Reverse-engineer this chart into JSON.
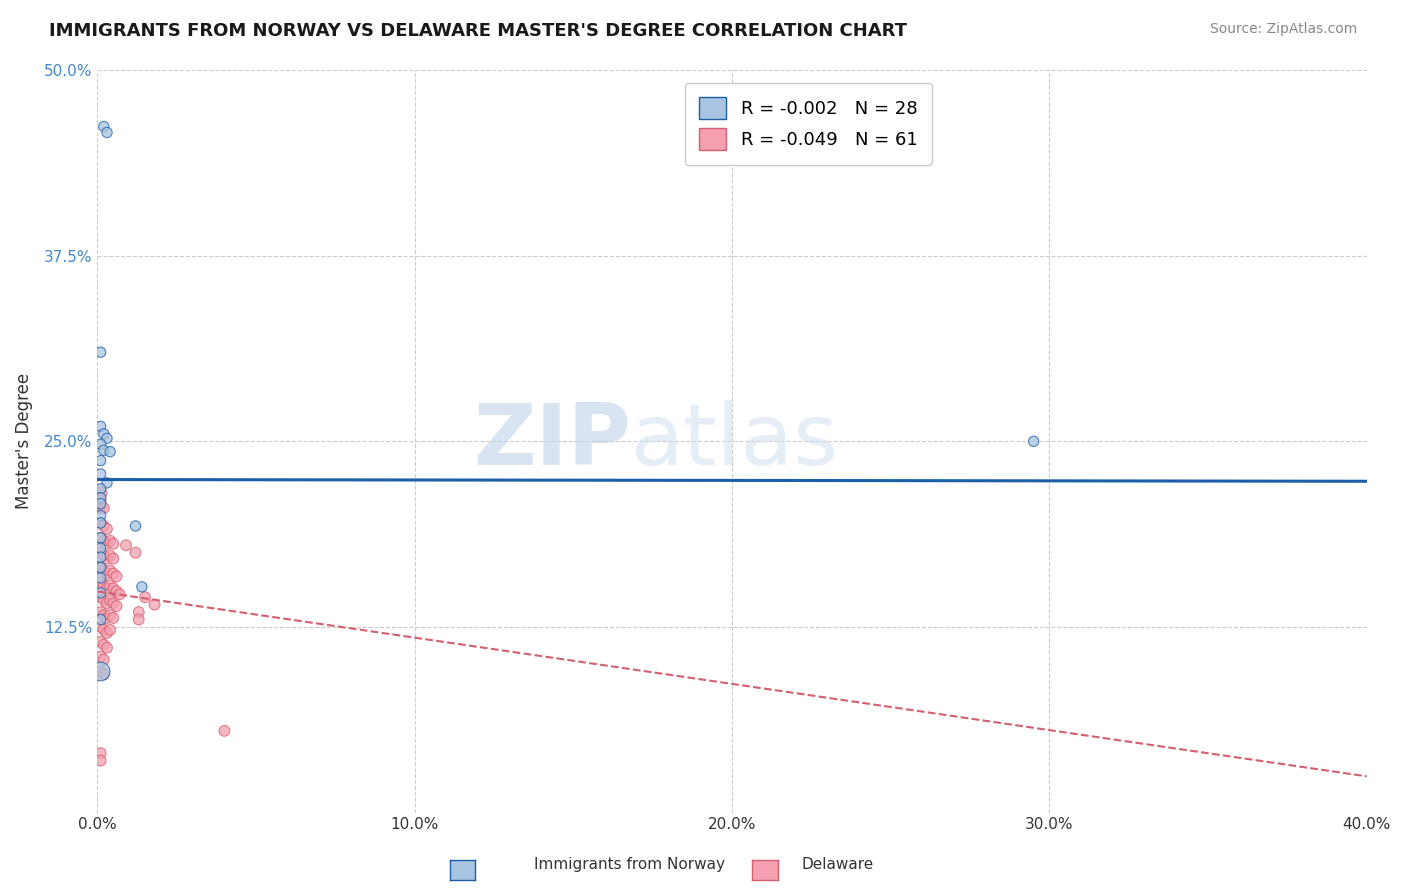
{
  "title": "IMMIGRANTS FROM NORWAY VS DELAWARE MASTER'S DEGREE CORRELATION CHART",
  "source_text": "Source: ZipAtlas.com",
  "ylabel": "Master's Degree",
  "legend_blue_label": "Immigrants from Norway",
  "legend_pink_label": "Delaware",
  "watermark_zip": "ZIP",
  "watermark_atlas": "atlas",
  "xlim": [
    0.0,
    0.4
  ],
  "ylim": [
    0.0,
    0.5
  ],
  "xticks": [
    0.0,
    0.1,
    0.2,
    0.3,
    0.4
  ],
  "xtick_labels": [
    "0.0%",
    "10.0%",
    "20.0%",
    "30.0%",
    "40.0%"
  ],
  "yticks": [
    0.0,
    0.125,
    0.25,
    0.375,
    0.5
  ],
  "ytick_labels": [
    "",
    "12.5%",
    "25.0%",
    "37.5%",
    "50.0%"
  ],
  "blue_R": -0.002,
  "blue_N": 28,
  "pink_R": -0.049,
  "pink_N": 61,
  "blue_color": "#a8c4e0",
  "pink_color": "#f4a0b0",
  "blue_line_color": "#1a5fa8",
  "pink_line_color": "#d45f70",
  "background_color": "#ffffff",
  "grid_color": "#cccccc",
  "blue_dots": [
    [
      0.002,
      0.462
    ],
    [
      0.003,
      0.458
    ],
    [
      0.001,
      0.31
    ],
    [
      0.001,
      0.26
    ],
    [
      0.002,
      0.255
    ],
    [
      0.003,
      0.252
    ],
    [
      0.001,
      0.248
    ],
    [
      0.002,
      0.244
    ],
    [
      0.004,
      0.243
    ],
    [
      0.001,
      0.237
    ],
    [
      0.001,
      0.228
    ],
    [
      0.003,
      0.222
    ],
    [
      0.001,
      0.218
    ],
    [
      0.001,
      0.212
    ],
    [
      0.001,
      0.208
    ],
    [
      0.001,
      0.2
    ],
    [
      0.001,
      0.195
    ],
    [
      0.012,
      0.193
    ],
    [
      0.001,
      0.185
    ],
    [
      0.001,
      0.178
    ],
    [
      0.001,
      0.172
    ],
    [
      0.001,
      0.165
    ],
    [
      0.001,
      0.158
    ],
    [
      0.001,
      0.148
    ],
    [
      0.014,
      0.152
    ],
    [
      0.001,
      0.13
    ],
    [
      0.295,
      0.25
    ],
    [
      0.001,
      0.095
    ]
  ],
  "blue_dot_sizes": [
    55,
    55,
    55,
    55,
    55,
    55,
    55,
    55,
    55,
    55,
    55,
    55,
    55,
    55,
    55,
    55,
    55,
    55,
    55,
    55,
    55,
    55,
    55,
    55,
    55,
    55,
    55,
    180
  ],
  "pink_dots": [
    [
      0.001,
      0.215
    ],
    [
      0.001,
      0.21
    ],
    [
      0.001,
      0.205
    ],
    [
      0.002,
      0.205
    ],
    [
      0.001,
      0.195
    ],
    [
      0.002,
      0.193
    ],
    [
      0.003,
      0.191
    ],
    [
      0.001,
      0.185
    ],
    [
      0.002,
      0.183
    ],
    [
      0.003,
      0.181
    ],
    [
      0.004,
      0.183
    ],
    [
      0.005,
      0.181
    ],
    [
      0.001,
      0.175
    ],
    [
      0.002,
      0.173
    ],
    [
      0.003,
      0.171
    ],
    [
      0.004,
      0.173
    ],
    [
      0.005,
      0.171
    ],
    [
      0.001,
      0.165
    ],
    [
      0.002,
      0.163
    ],
    [
      0.003,
      0.161
    ],
    [
      0.004,
      0.163
    ],
    [
      0.005,
      0.161
    ],
    [
      0.006,
      0.159
    ],
    [
      0.001,
      0.155
    ],
    [
      0.002,
      0.153
    ],
    [
      0.003,
      0.151
    ],
    [
      0.004,
      0.153
    ],
    [
      0.005,
      0.151
    ],
    [
      0.006,
      0.149
    ],
    [
      0.007,
      0.147
    ],
    [
      0.001,
      0.145
    ],
    [
      0.002,
      0.143
    ],
    [
      0.003,
      0.141
    ],
    [
      0.004,
      0.143
    ],
    [
      0.005,
      0.141
    ],
    [
      0.006,
      0.139
    ],
    [
      0.001,
      0.135
    ],
    [
      0.002,
      0.133
    ],
    [
      0.003,
      0.131
    ],
    [
      0.004,
      0.133
    ],
    [
      0.005,
      0.131
    ],
    [
      0.001,
      0.125
    ],
    [
      0.002,
      0.123
    ],
    [
      0.003,
      0.121
    ],
    [
      0.004,
      0.123
    ],
    [
      0.001,
      0.115
    ],
    [
      0.002,
      0.113
    ],
    [
      0.003,
      0.111
    ],
    [
      0.001,
      0.105
    ],
    [
      0.002,
      0.103
    ],
    [
      0.001,
      0.095
    ],
    [
      0.002,
      0.093
    ],
    [
      0.009,
      0.18
    ],
    [
      0.012,
      0.175
    ],
    [
      0.015,
      0.145
    ],
    [
      0.018,
      0.14
    ],
    [
      0.013,
      0.135
    ],
    [
      0.013,
      0.13
    ],
    [
      0.04,
      0.055
    ],
    [
      0.001,
      0.04
    ],
    [
      0.001,
      0.035
    ]
  ],
  "pink_dot_sizes": [
    80,
    60,
    60,
    60,
    60,
    60,
    60,
    60,
    60,
    60,
    60,
    60,
    60,
    60,
    60,
    60,
    60,
    60,
    60,
    60,
    60,
    60,
    60,
    60,
    60,
    60,
    60,
    60,
    60,
    60,
    60,
    60,
    60,
    60,
    60,
    60,
    60,
    60,
    60,
    60,
    60,
    60,
    60,
    60,
    60,
    60,
    60,
    60,
    60,
    60,
    60,
    60,
    60,
    60,
    60,
    60,
    60,
    60,
    60,
    60,
    60
  ]
}
